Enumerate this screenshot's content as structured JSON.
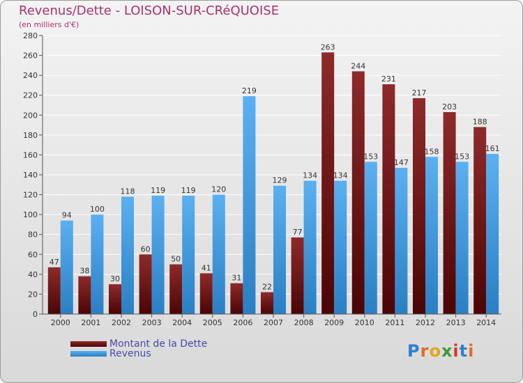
{
  "title": "Revenus/Dette - LOISON-SUR-CRéQUOISE",
  "subtitle": "(en milliers d'€)",
  "logo": {
    "text": "Proxiti"
  },
  "chart_data": {
    "type": "bar",
    "categories": [
      "2000",
      "2001",
      "2002",
      "2003",
      "2004",
      "2005",
      "2006",
      "2007",
      "2008",
      "2009",
      "2010",
      "2011",
      "2012",
      "2013",
      "2014"
    ],
    "series": [
      {
        "name": "Montant de la Dette",
        "color": "#7a1a1a",
        "values": [
          47,
          38,
          30,
          60,
          50,
          41,
          31,
          22,
          77,
          263,
          244,
          231,
          217,
          203,
          188
        ]
      },
      {
        "name": "Revenus",
        "color": "#3d9be0",
        "values": [
          94,
          100,
          118,
          119,
          119,
          120,
          219,
          129,
          134,
          134,
          153,
          147,
          158,
          153,
          161
        ]
      }
    ],
    "ylim": [
      0,
      280
    ],
    "yticks": [
      0,
      20,
      40,
      60,
      80,
      100,
      120,
      140,
      160,
      180,
      200,
      220,
      240,
      260,
      280
    ],
    "grid": true,
    "legend": "bottom-left"
  }
}
